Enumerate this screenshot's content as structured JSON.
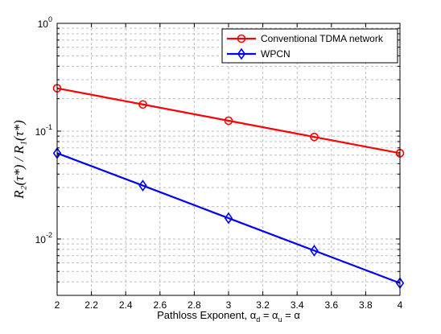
{
  "chart_data": {
    "type": "line",
    "xlabel": "Pathloss Exponent, α_d = α_u = α",
    "xlabel_parts": {
      "prefix": "Pathloss Exponent, α",
      "sub1": "d",
      "mid": " = α",
      "sub2": "u",
      "suffix": " = α"
    },
    "ylabel": "R₂(τ*) / R₁(τ*)",
    "xlim": [
      2,
      4
    ],
    "ylim": [
      0.003,
      1
    ],
    "yscale": "log",
    "grid": true,
    "legend_position": "top-right",
    "x_ticks": [
      "2",
      "2.2",
      "2.4",
      "2.6",
      "2.8",
      "3",
      "3.2",
      "3.4",
      "3.6",
      "3.8",
      "4"
    ],
    "y_ticks": [
      {
        "base": "10",
        "exp": "-2",
        "value": 0.01
      },
      {
        "base": "10",
        "exp": "-1",
        "value": 0.1
      },
      {
        "base": "10",
        "exp": "0",
        "value": 1
      }
    ],
    "series": [
      {
        "name": "Conventional TDMA network",
        "color": "#ff0000",
        "marker": "circle",
        "x": [
          2,
          2.5,
          3,
          3.5,
          4
        ],
        "y": [
          0.25,
          0.177,
          0.125,
          0.0884,
          0.0625
        ]
      },
      {
        "name": "WPCN",
        "color": "#0000ff",
        "marker": "diamond",
        "x": [
          2,
          2.5,
          3,
          3.5,
          4
        ],
        "y": [
          0.0625,
          0.0313,
          0.0156,
          0.0078,
          0.0039
        ]
      }
    ]
  }
}
